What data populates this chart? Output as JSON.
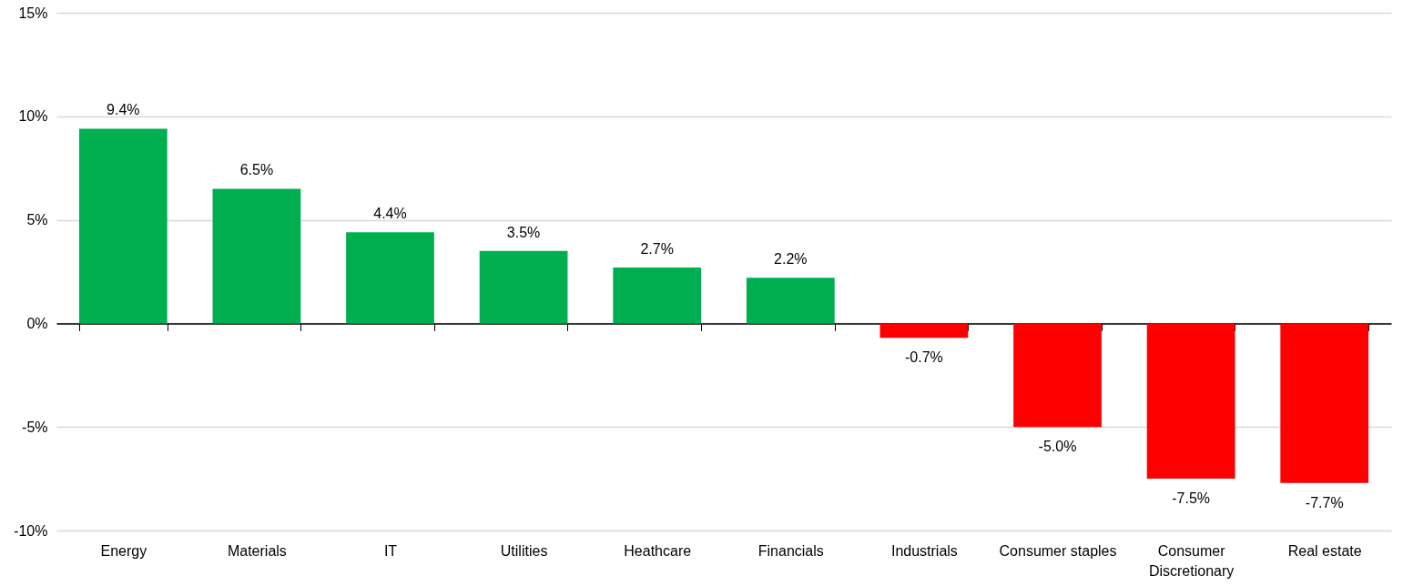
{
  "chart_data": {
    "type": "bar",
    "categories": [
      "Energy",
      "Materials",
      "IT",
      "Utilities",
      "Heathcare",
      "Financials",
      "Industrials",
      "Consumer staples",
      "Consumer Discretionary",
      "Real estate"
    ],
    "values": [
      9.4,
      6.5,
      4.4,
      3.5,
      2.7,
      2.2,
      -0.7,
      -5.0,
      -7.5,
      -7.7
    ],
    "colors": [
      "#00b050",
      "#00b050",
      "#00b050",
      "#00b050",
      "#00b050",
      "#00b050",
      "#ff0000",
      "#ff0000",
      "#ff0000",
      "#ff0000"
    ],
    "value_labels": [
      "9.4%",
      "6.5%",
      "4.4%",
      "3.5%",
      "2.7%",
      "2.2%",
      "-0.7%",
      "-5.0%",
      "-7.5%",
      "-7.7%"
    ],
    "ylim": [
      -10,
      15
    ],
    "yticks": [
      {
        "value": -10,
        "label": "-10%"
      },
      {
        "value": -5,
        "label": "-5%"
      },
      {
        "value": 0,
        "label": "0%"
      },
      {
        "value": 5,
        "label": "5%"
      },
      {
        "value": 10,
        "label": "10%"
      },
      {
        "value": 15,
        "label": "15%"
      }
    ],
    "grid": "y"
  }
}
